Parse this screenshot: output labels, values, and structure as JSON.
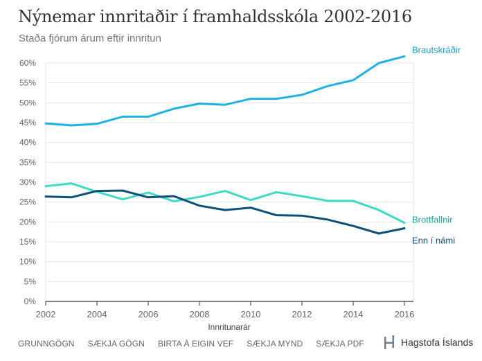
{
  "header": {
    "title": "Nýnemar innritaðir í framhaldsskóla 2002-2016",
    "subtitle": "Staða fjórum árum eftir innritun"
  },
  "chart_data": {
    "type": "line",
    "xlabel": "Innritunarár",
    "ylabel": "",
    "x": [
      2002,
      2003,
      2004,
      2005,
      2006,
      2007,
      2008,
      2009,
      2010,
      2011,
      2012,
      2013,
      2014,
      2015,
      2016
    ],
    "x_ticks": [
      2002,
      2004,
      2006,
      2008,
      2010,
      2012,
      2014,
      2016
    ],
    "x_tick_labels": [
      "2002",
      "2004",
      "2006",
      "2008",
      "2010",
      "2012",
      "2014",
      "2016"
    ],
    "xlim": [
      2002,
      2016
    ],
    "ylim": [
      0,
      62
    ],
    "y_ticks": [
      0,
      5,
      10,
      15,
      20,
      25,
      30,
      35,
      40,
      45,
      50,
      55,
      60
    ],
    "y_tick_labels": [
      "0%",
      "5%",
      "10%",
      "15%",
      "20%",
      "25%",
      "30%",
      "35%",
      "40%",
      "45%",
      "50%",
      "55%",
      "60%"
    ],
    "grid": "horizontal",
    "legend": "end-of-line labels",
    "series": [
      {
        "name": "Brautskráðir",
        "color": "#1fb1e6",
        "values": [
          44.8,
          44.3,
          44.7,
          46.5,
          46.5,
          48.5,
          49.8,
          49.5,
          51.0,
          51.0,
          52.0,
          54.2,
          55.7,
          60.0,
          61.7
        ]
      },
      {
        "name": "Brottfallnir",
        "color": "#3ddbc3",
        "values": [
          29.0,
          29.7,
          27.6,
          25.7,
          27.4,
          25.2,
          26.3,
          27.8,
          25.5,
          27.5,
          26.5,
          25.3,
          25.3,
          23.0,
          19.8
        ]
      },
      {
        "name": "Enn í námi",
        "color": "#0d4f78",
        "values": [
          26.4,
          26.2,
          27.8,
          27.9,
          26.2,
          26.5,
          24.1,
          23.0,
          23.6,
          21.7,
          21.6,
          20.6,
          19.0,
          17.1,
          18.4
        ]
      }
    ]
  },
  "footer": {
    "links": [
      "GRUNNGÖGN",
      "SÆKJA GÖGN",
      "BIRTA Á EIGIN VEF",
      "SÆKJA MYND",
      "SÆKJA PDF"
    ],
    "brand": "Hagstofa Íslands",
    "brand_icon": "hagstofa-logo-icon"
  }
}
